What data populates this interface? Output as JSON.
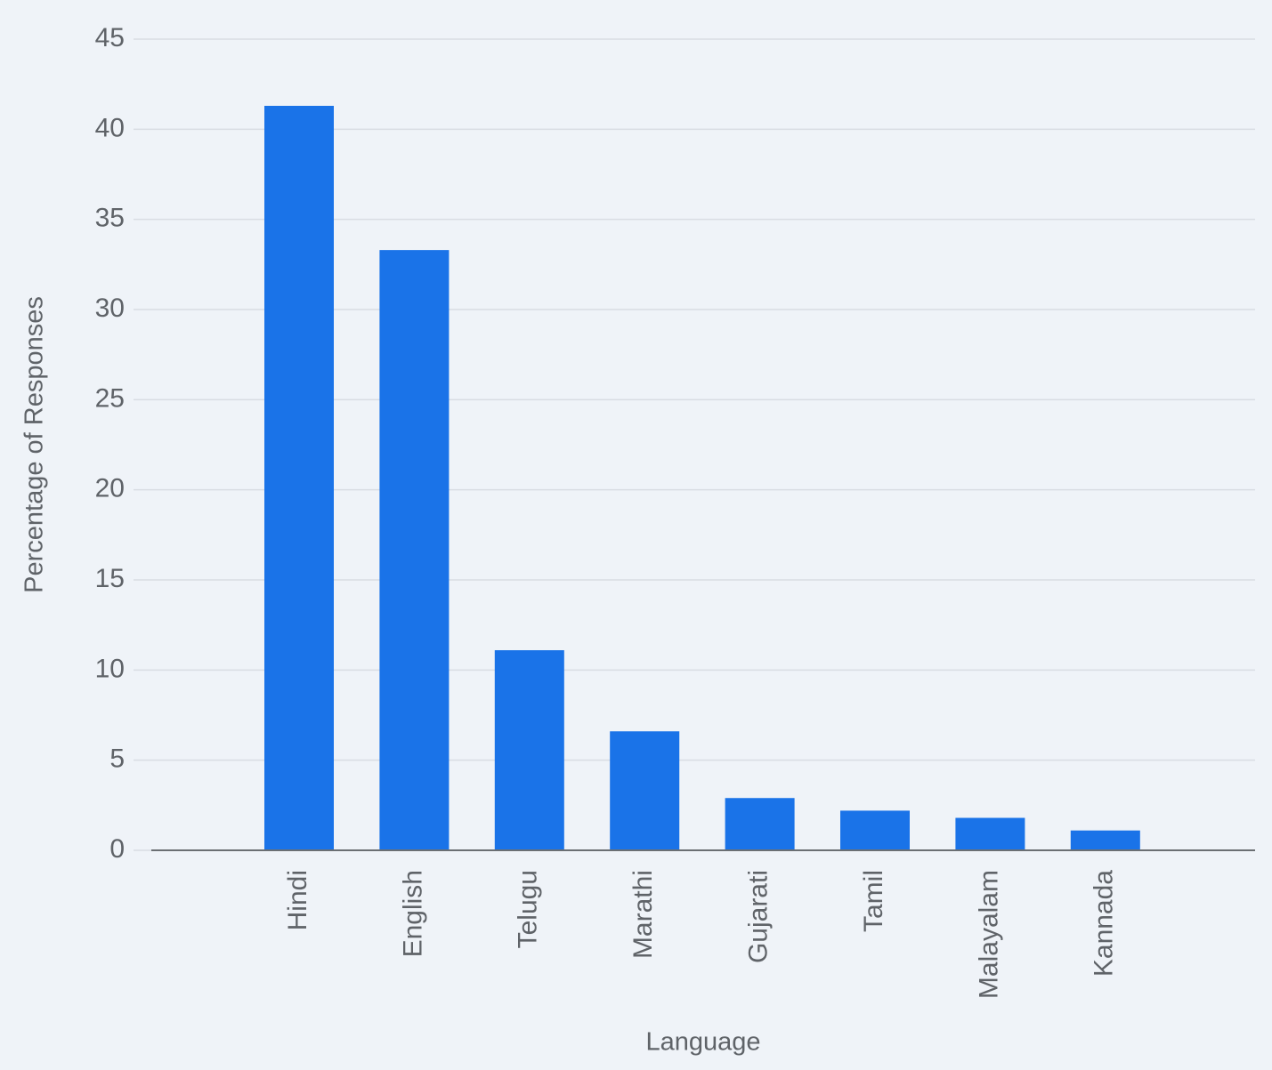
{
  "chart_data": {
    "type": "bar",
    "x_label": "Language",
    "y_label": "Percentage of Responses",
    "categories": [
      "Hindi",
      "English",
      "Telugu",
      "Marathi",
      "Gujarati",
      "Tamil",
      "Malayalam",
      "Kannada"
    ],
    "values": [
      41.3,
      33.3,
      11.1,
      6.6,
      2.9,
      2.2,
      1.8,
      1.1
    ],
    "color": "#1a73e8",
    "ylim": [
      0,
      45
    ],
    "yticks": [
      0,
      5,
      10,
      15,
      20,
      25,
      30,
      35,
      40,
      45
    ],
    "grid": true
  }
}
